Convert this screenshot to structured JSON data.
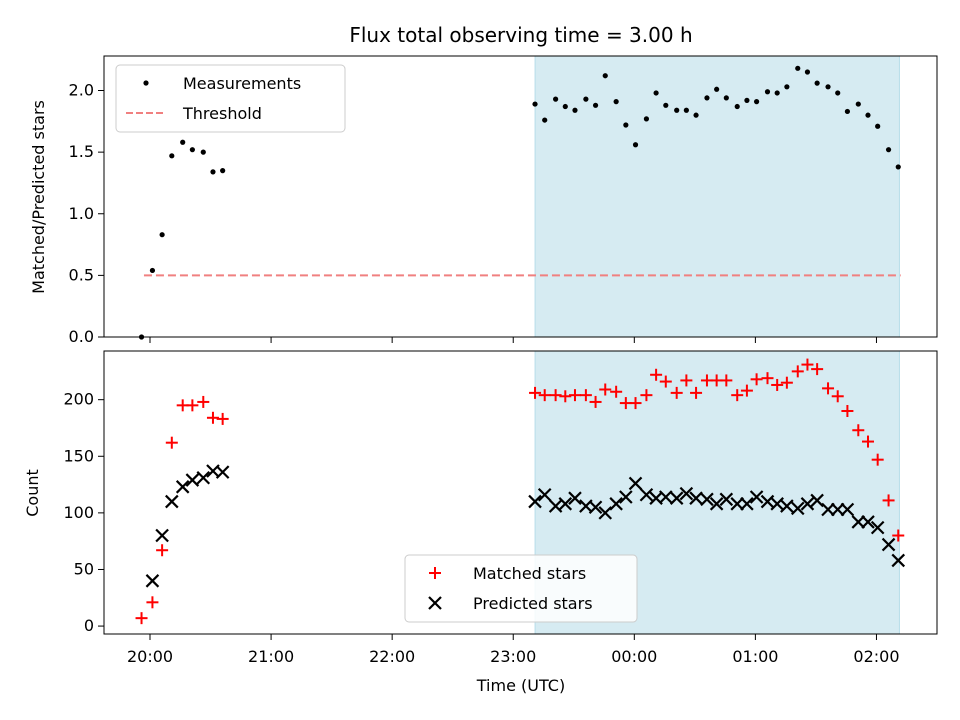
{
  "chart_data": {
    "title": "Flux total observing time = 3.00 h",
    "xlabel": "Time (UTC)",
    "x_ticks": [
      "20:00",
      "21:00",
      "22:00",
      "23:00",
      "00:00",
      "01:00",
      "02:00"
    ],
    "x_tick_hours": [
      20,
      21,
      22,
      23,
      24,
      25,
      26
    ],
    "x_range_hours": [
      19.62,
      26.5
    ],
    "shaded_region_hours": [
      23.18,
      26.19
    ],
    "shade_color": "#add8e6",
    "panels": [
      {
        "type": "scatter",
        "ylabel": "Matched/Predicted stars",
        "ylim": [
          0,
          2.28
        ],
        "yticks": [
          "0.0",
          "0.5",
          "1.0",
          "1.5",
          "2.0"
        ],
        "ytick_values": [
          0,
          0.5,
          1.0,
          1.5,
          2.0
        ],
        "threshold": {
          "value": 0.5,
          "x_range_hours": [
            19.95,
            26.2
          ],
          "color": "#f08080"
        },
        "legend": {
          "placement": "upper-left",
          "entries": [
            "Measurements",
            "Threshold"
          ]
        },
        "series": [
          {
            "name": "Measurements",
            "color": "#000000",
            "marker": "dot",
            "x": [
              19.93,
              20.02,
              20.1,
              20.18,
              20.27,
              20.35,
              20.44,
              20.52,
              20.6,
              23.18,
              23.26,
              23.35,
              23.43,
              23.51,
              23.6,
              23.68,
              23.76,
              23.85,
              23.93,
              24.01,
              24.1,
              24.18,
              24.26,
              24.35,
              24.43,
              24.51,
              24.6,
              24.68,
              24.76,
              24.85,
              24.93,
              25.01,
              25.1,
              25.18,
              25.26,
              25.35,
              25.43,
              25.51,
              25.6,
              25.68,
              25.76,
              25.85,
              25.93,
              26.01,
              26.1,
              26.18
            ],
            "y": [
              0.0,
              0.54,
              0.83,
              1.47,
              1.58,
              1.52,
              1.5,
              1.34,
              1.35,
              1.89,
              1.76,
              1.93,
              1.87,
              1.84,
              1.93,
              1.88,
              2.12,
              1.91,
              1.72,
              1.56,
              1.77,
              1.98,
              1.88,
              1.84,
              1.84,
              1.8,
              1.94,
              2.01,
              1.94,
              1.87,
              1.92,
              1.91,
              1.99,
              1.98,
              2.03,
              2.18,
              2.15,
              2.06,
              2.03,
              1.98,
              1.83,
              1.89,
              1.8,
              1.71,
              1.52,
              1.38
            ]
          }
        ]
      },
      {
        "type": "scatter",
        "ylabel": "Count",
        "ylim": [
          -7,
          243
        ],
        "yticks": [
          "0",
          "50",
          "100",
          "150",
          "200"
        ],
        "ytick_values": [
          0,
          50,
          100,
          150,
          200
        ],
        "legend": {
          "placement": "lower-center",
          "entries": [
            "Matched stars",
            "Predicted stars"
          ]
        },
        "series": [
          {
            "name": "Matched stars",
            "color": "#ff0000",
            "marker": "plus",
            "x": [
              19.93,
              20.02,
              20.1,
              20.18,
              20.27,
              20.35,
              20.44,
              20.52,
              20.6,
              23.18,
              23.26,
              23.35,
              23.43,
              23.51,
              23.6,
              23.68,
              23.76,
              23.85,
              23.93,
              24.01,
              24.1,
              24.18,
              24.26,
              24.35,
              24.43,
              24.51,
              24.6,
              24.68,
              24.76,
              24.85,
              24.93,
              25.01,
              25.1,
              25.18,
              25.26,
              25.35,
              25.43,
              25.51,
              25.6,
              25.68,
              25.76,
              25.85,
              25.93,
              26.01,
              26.1,
              26.18
            ],
            "y": [
              7,
              21,
              67,
              162,
              195,
              195,
              198,
              184,
              183,
              206,
              204,
              204,
              203,
              204,
              204,
              198,
              209,
              207,
              197,
              197,
              204,
              222,
              216,
              206,
              217,
              206,
              217,
              217,
              217,
              204,
              208,
              218,
              219,
              213,
              215,
              225,
              231,
              227,
              210,
              203,
              190,
              173,
              163,
              147,
              111,
              80
            ]
          },
          {
            "name": "Predicted stars",
            "color": "#000000",
            "marker": "x",
            "x": [
              19.93,
              20.02,
              20.1,
              20.18,
              20.27,
              20.35,
              20.44,
              20.52,
              20.6,
              23.18,
              23.26,
              23.35,
              23.43,
              23.51,
              23.6,
              23.68,
              23.76,
              23.85,
              23.93,
              24.01,
              24.1,
              24.18,
              24.26,
              24.35,
              24.43,
              24.51,
              24.6,
              24.68,
              24.76,
              24.85,
              24.93,
              25.01,
              25.1,
              25.18,
              25.26,
              25.35,
              25.43,
              25.51,
              25.6,
              25.68,
              25.76,
              25.85,
              25.93,
              26.01,
              26.1,
              26.18
            ],
            "y": [
              null,
              40,
              80,
              110,
              123,
              129,
              131,
              137,
              136,
              110,
              116,
              106,
              108,
              113,
              106,
              105,
              100,
              108,
              114,
              126,
              116,
              113,
              114,
              113,
              117,
              113,
              112,
              108,
              112,
              108,
              108,
              114,
              110,
              108,
              106,
              104,
              108,
              111,
              103,
              103,
              103,
              92,
              92,
              87,
              72,
              58
            ]
          }
        ]
      }
    ]
  }
}
